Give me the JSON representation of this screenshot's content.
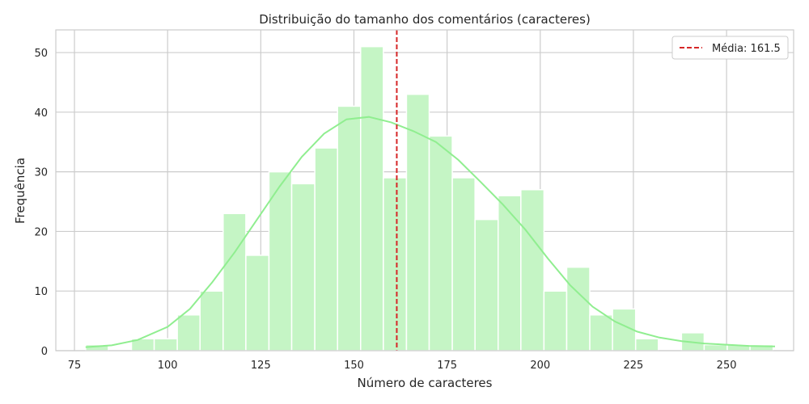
{
  "chart_data": {
    "type": "bar",
    "subtype": "histogram-with-kde",
    "title": "Distribuição do tamanho dos comentários (caracteres)",
    "xlabel": "Número de caracteres",
    "ylabel": "Frequência",
    "xlim": [
      70,
      268
    ],
    "ylim": [
      0,
      53.8
    ],
    "xticks": [
      75,
      100,
      125,
      150,
      175,
      200,
      225,
      250
    ],
    "yticks": [
      0,
      10,
      20,
      30,
      40,
      50
    ],
    "grid": true,
    "legend_position": "top-right",
    "bins": [
      {
        "start": 78.0,
        "end": 84.1,
        "count": 1
      },
      {
        "start": 84.1,
        "end": 90.3,
        "count": 0
      },
      {
        "start": 90.3,
        "end": 96.4,
        "count": 2
      },
      {
        "start": 96.4,
        "end": 102.6,
        "count": 2
      },
      {
        "start": 102.6,
        "end": 108.7,
        "count": 6
      },
      {
        "start": 108.7,
        "end": 114.9,
        "count": 10
      },
      {
        "start": 114.9,
        "end": 121.0,
        "count": 23
      },
      {
        "start": 121.0,
        "end": 127.2,
        "count": 16
      },
      {
        "start": 127.2,
        "end": 133.3,
        "count": 30
      },
      {
        "start": 133.3,
        "end": 139.5,
        "count": 28
      },
      {
        "start": 139.5,
        "end": 145.6,
        "count": 34
      },
      {
        "start": 145.6,
        "end": 151.8,
        "count": 41
      },
      {
        "start": 151.8,
        "end": 157.9,
        "count": 51
      },
      {
        "start": 157.9,
        "end": 164.1,
        "count": 29
      },
      {
        "start": 164.1,
        "end": 170.2,
        "count": 43
      },
      {
        "start": 170.2,
        "end": 176.4,
        "count": 36
      },
      {
        "start": 176.4,
        "end": 182.5,
        "count": 29
      },
      {
        "start": 182.5,
        "end": 188.7,
        "count": 22
      },
      {
        "start": 188.7,
        "end": 194.8,
        "count": 26
      },
      {
        "start": 194.8,
        "end": 201.0,
        "count": 27
      },
      {
        "start": 201.0,
        "end": 207.1,
        "count": 10
      },
      {
        "start": 207.1,
        "end": 213.3,
        "count": 14
      },
      {
        "start": 213.3,
        "end": 219.4,
        "count": 6
      },
      {
        "start": 219.4,
        "end": 225.6,
        "count": 7
      },
      {
        "start": 225.6,
        "end": 231.7,
        "count": 2
      },
      {
        "start": 231.7,
        "end": 237.9,
        "count": 0
      },
      {
        "start": 237.9,
        "end": 244.0,
        "count": 3
      },
      {
        "start": 244.0,
        "end": 250.2,
        "count": 1
      },
      {
        "start": 250.2,
        "end": 256.3,
        "count": 1
      },
      {
        "start": 256.3,
        "end": 262.5,
        "count": 1
      }
    ],
    "kde": {
      "x": [
        78,
        85,
        92,
        100,
        106,
        112,
        118,
        124,
        130,
        136,
        142,
        148,
        154,
        160,
        166,
        172,
        178,
        184,
        190,
        196,
        202,
        208,
        214,
        220,
        226,
        232,
        238,
        244,
        250,
        256,
        263
      ],
      "y": [
        0.6,
        0.9,
        1.8,
        4.0,
        7.0,
        11.5,
        16.5,
        22.0,
        27.5,
        32.5,
        36.4,
        38.8,
        39.2,
        38.3,
        36.8,
        35.0,
        32.0,
        28.3,
        24.5,
        20.3,
        15.5,
        11.0,
        7.4,
        4.9,
        3.2,
        2.2,
        1.6,
        1.2,
        1.0,
        0.8,
        0.7
      ]
    },
    "mean_line": {
      "x": 161.5,
      "label": "Média: 161.5",
      "color": "#d62728",
      "style": "dashed"
    },
    "colors": {
      "bar_fill": "#c5f5c5",
      "bar_edge": "#ffffff",
      "kde_line": "#90ee90",
      "grid": "#cccccc",
      "axes_edge": "#cccccc"
    }
  }
}
